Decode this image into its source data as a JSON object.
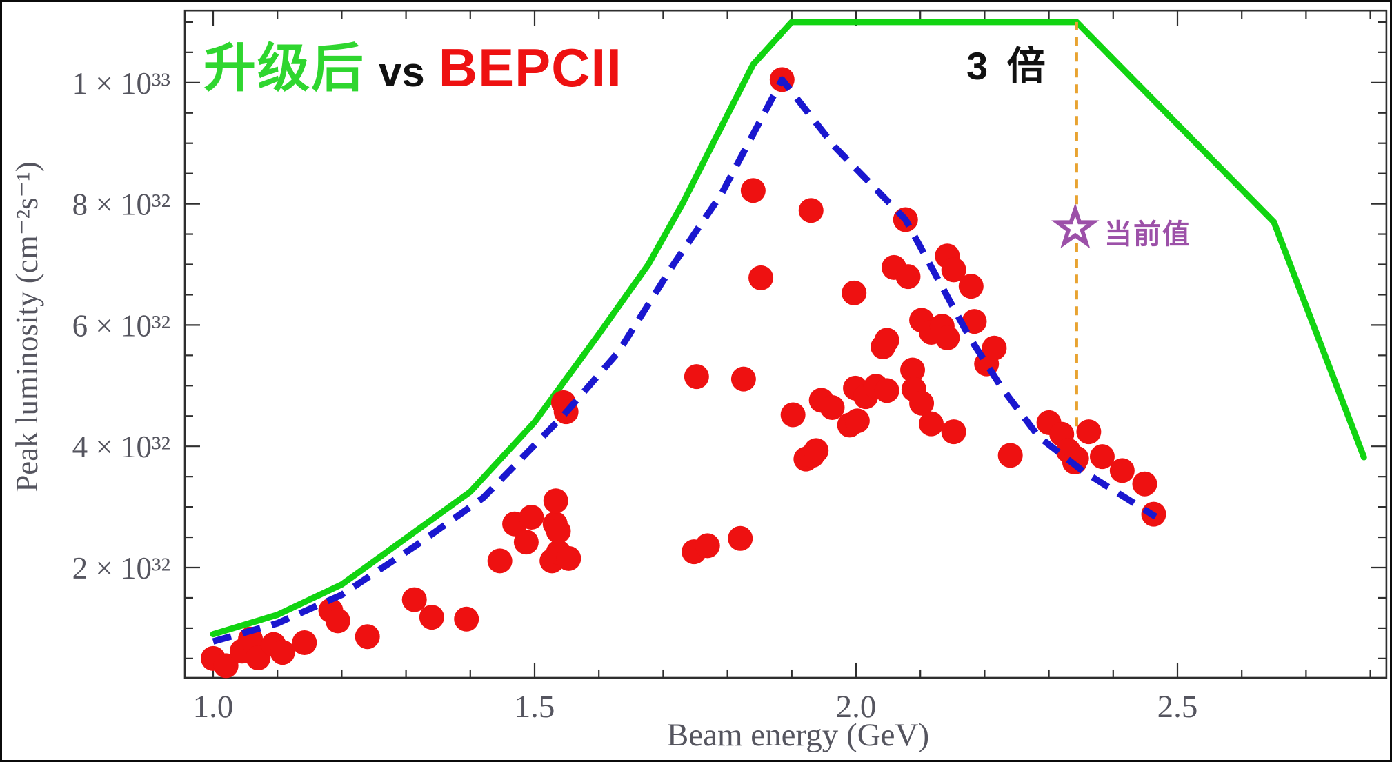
{
  "title": {
    "upgrade": "升级后",
    "vs": "vs",
    "baseline": "BEPCII"
  },
  "annotations": {
    "three_times": "3 倍",
    "current_value": "当前值"
  },
  "axes": {
    "x_label": "Beam energy (GeV)",
    "y_label": "Peak luminosity (cm⁻²s⁻¹)",
    "x_ticks": [
      {
        "value": 1.0,
        "label": "1.0"
      },
      {
        "value": 1.5,
        "label": "1.5"
      },
      {
        "value": 2.0,
        "label": "2.0"
      },
      {
        "value": 2.5,
        "label": "2.5"
      }
    ],
    "y_ticks": [
      {
        "value": 10,
        "label": "1 × 10³³"
      },
      {
        "value": 8,
        "label": "8 × 10³²"
      },
      {
        "value": 6,
        "label": "6 × 10³²"
      },
      {
        "value": 4,
        "label": "4 × 10³²"
      },
      {
        "value": 2,
        "label": "2 × 10³²"
      }
    ],
    "x_minor_from": 1.0,
    "x_minor_to": 2.8,
    "x_minor_step": 0.1,
    "y_minor_from": 0.5,
    "y_minor_to": 11.0,
    "y_minor_step": 0.5,
    "x_range": [
      0.956,
      2.825
    ],
    "y_range_1e32": [
      0.18,
      11.19
    ]
  },
  "colors": {
    "upgrade_line": "#11d411",
    "bepcii_dashed": "#1a17cf",
    "data_points": "#ee1111",
    "reference_line": "#e8a331",
    "star": "#9c50a8",
    "axis_text": "#55555f",
    "frame": "#2e2e2e"
  },
  "chart_data": {
    "type": "scatter",
    "xlabel": "Beam energy (GeV)",
    "ylabel": "Peak luminosity (cm⁻²s⁻¹)",
    "x_unit": "GeV",
    "y_unit": "1e32 cm^-2 s^-1",
    "xlim": [
      0.956,
      2.825
    ],
    "ylim_1e32": [
      0.18,
      11.19
    ],
    "grid": false,
    "series": [
      {
        "name": "升级后 (upgraded luminosity)",
        "type": "line",
        "style": "solid",
        "color": "#11d411",
        "points": [
          [
            1.0,
            0.9
          ],
          [
            1.1,
            1.22
          ],
          [
            1.2,
            1.72
          ],
          [
            1.315,
            2.6
          ],
          [
            1.4,
            3.25
          ],
          [
            1.5,
            4.4
          ],
          [
            1.6,
            5.85
          ],
          [
            1.677,
            7.0
          ],
          [
            1.73,
            8.0
          ],
          [
            1.78,
            9.05
          ],
          [
            1.84,
            10.3
          ],
          [
            1.9,
            11.0
          ],
          [
            2.343,
            11.0
          ],
          [
            2.65,
            7.7
          ],
          [
            2.79,
            3.82
          ]
        ]
      },
      {
        "name": "BEPCII design curve",
        "type": "line",
        "style": "dashed",
        "color": "#1a17cf",
        "points": [
          [
            1.0,
            0.78
          ],
          [
            1.1,
            1.08
          ],
          [
            1.2,
            1.55
          ],
          [
            1.315,
            2.36
          ],
          [
            1.42,
            3.15
          ],
          [
            1.544,
            4.5
          ],
          [
            1.63,
            5.55
          ],
          [
            1.716,
            7.0
          ],
          [
            1.79,
            8.15
          ],
          [
            1.885,
            10.05
          ],
          [
            1.967,
            8.94
          ],
          [
            2.077,
            7.74
          ],
          [
            2.177,
            5.79
          ],
          [
            2.227,
            4.96
          ],
          [
            2.284,
            4.16
          ],
          [
            2.353,
            3.59
          ],
          [
            2.466,
            2.84
          ]
        ]
      },
      {
        "name": "BEPCII peak luminosity data",
        "type": "scatter",
        "color": "#ee1111",
        "points": [
          [
            1.0,
            0.5
          ],
          [
            1.02,
            0.38
          ],
          [
            1.045,
            0.62
          ],
          [
            1.058,
            0.82
          ],
          [
            1.07,
            0.51
          ],
          [
            1.094,
            0.73
          ],
          [
            1.108,
            0.6
          ],
          [
            1.142,
            0.76
          ],
          [
            1.183,
            1.29
          ],
          [
            1.194,
            1.12
          ],
          [
            1.24,
            0.86
          ],
          [
            1.313,
            1.47
          ],
          [
            1.34,
            1.18
          ],
          [
            1.394,
            1.15
          ],
          [
            1.446,
            2.11
          ],
          [
            1.469,
            2.72
          ],
          [
            1.487,
            2.42
          ],
          [
            1.495,
            2.83
          ],
          [
            1.527,
            2.11
          ],
          [
            1.532,
            2.72
          ],
          [
            1.533,
            3.1
          ],
          [
            1.537,
            2.6
          ],
          [
            1.537,
            2.25
          ],
          [
            1.553,
            2.15
          ],
          [
            1.545,
            4.72
          ],
          [
            1.549,
            4.57
          ],
          [
            1.748,
            2.26
          ],
          [
            1.769,
            2.36
          ],
          [
            1.82,
            2.48
          ],
          [
            1.752,
            5.15
          ],
          [
            1.825,
            5.11
          ],
          [
            1.852,
            6.78
          ],
          [
            1.84,
            8.22
          ],
          [
            1.885,
            10.05
          ],
          [
            1.93,
            7.89
          ],
          [
            1.902,
            4.52
          ],
          [
            1.922,
            3.79
          ],
          [
            1.932,
            3.85
          ],
          [
            1.938,
            3.93
          ],
          [
            1.946,
            4.76
          ],
          [
            1.963,
            4.64
          ],
          [
            1.99,
            4.35
          ],
          [
            1.999,
            4.96
          ],
          [
            2.002,
            4.42
          ],
          [
            2.015,
            4.82
          ],
          [
            1.997,
            6.53
          ],
          [
            2.059,
            6.95
          ],
          [
            2.081,
            6.8
          ],
          [
            2.142,
            7.14
          ],
          [
            2.152,
            6.91
          ],
          [
            2.179,
            6.64
          ],
          [
            2.077,
            7.74
          ],
          [
            2.031,
            4.99
          ],
          [
            2.042,
            5.64
          ],
          [
            2.048,
            4.92
          ],
          [
            2.048,
            5.75
          ],
          [
            2.088,
            5.26
          ],
          [
            2.09,
            4.94
          ],
          [
            2.102,
            6.08
          ],
          [
            2.117,
            5.88
          ],
          [
            2.134,
            5.98
          ],
          [
            2.142,
            5.79
          ],
          [
            2.184,
            6.06
          ],
          [
            2.203,
            5.36
          ],
          [
            2.215,
            5.62
          ],
          [
            2.102,
            4.71
          ],
          [
            2.117,
            4.37
          ],
          [
            2.152,
            4.24
          ],
          [
            2.24,
            3.85
          ],
          [
            2.3,
            4.39
          ],
          [
            2.32,
            4.2
          ],
          [
            2.33,
            3.93
          ],
          [
            2.34,
            3.74
          ],
          [
            2.343,
            3.8
          ],
          [
            2.362,
            4.24
          ],
          [
            2.383,
            3.83
          ],
          [
            2.414,
            3.6
          ],
          [
            2.449,
            3.38
          ],
          [
            2.463,
            2.88
          ]
        ]
      }
    ],
    "markers": {
      "current_value_star": {
        "x": 2.341,
        "y_1e32": 7.6,
        "label": "当前值",
        "color": "#9c50a8"
      },
      "reference_vline": {
        "x": 2.343,
        "y_from_1e32": 4.33,
        "y_to_1e32": 11.0,
        "color": "#e8a331",
        "style": "dashed"
      }
    },
    "annotations": [
      {
        "text": "3 倍",
        "x": 2.25,
        "y_1e32": 10.4
      },
      {
        "text": "当前值",
        "x": 2.39,
        "y_1e32": 7.6
      }
    ]
  }
}
